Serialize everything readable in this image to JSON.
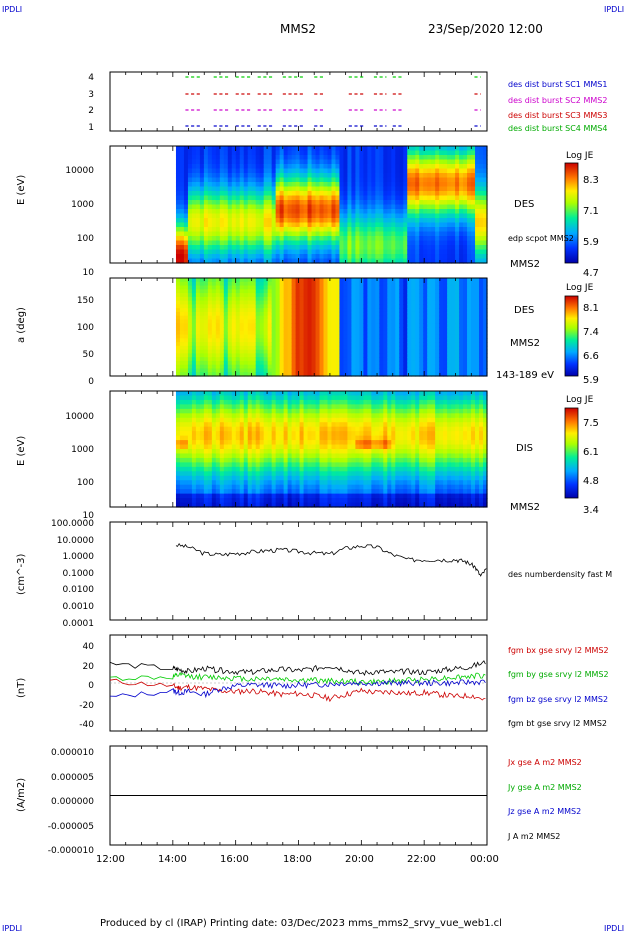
{
  "corner_label": "IPDLI",
  "header": {
    "spacecraft": "MMS2",
    "datetime": "23/Sep/2020 12:00"
  },
  "footer": "Produced by cl (IRAP)   Printing date: 03/Dec/2023   mms_mms2_srvy_vue_web1.cl",
  "colors": {
    "mms1": "#0000cc",
    "mms2": "#cc00cc",
    "mms3": "#cc0000",
    "mms4": "#00cc00",
    "black": "#000000"
  },
  "time_axis": {
    "ticks": [
      "12:00",
      "14:00",
      "16:00",
      "18:00",
      "20:00",
      "22:00",
      "00:00"
    ]
  },
  "panels": {
    "burst": {
      "yticks": [
        "4",
        "3",
        "2",
        "1"
      ],
      "legend": [
        "des dist burst SC1 MMS1",
        "des dist burst SC2 MMS2",
        "des dist burst SC3 MMS3",
        "des dist burst SC4 MMS4"
      ]
    },
    "des_energy": {
      "ylabel": "E (eV)",
      "yticks": [
        "10000",
        "1000",
        "100",
        "10"
      ],
      "label": "DES",
      "sublabel": "edp scpot MMS2",
      "spacecraft": "MMS2",
      "colorbar": {
        "title": "Log JE",
        "ticks": [
          "8.3",
          "7.1",
          "5.9",
          "4.7"
        ]
      }
    },
    "des_pitch": {
      "ylabel": "a (deg)",
      "yticks": [
        "150",
        "100",
        "50",
        "0"
      ],
      "label": "DES",
      "spacecraft": "MMS2",
      "energy_range": "143-189 eV",
      "colorbar": {
        "title": "Log JE",
        "ticks": [
          "8.1",
          "7.4",
          "6.6",
          "5.9"
        ]
      }
    },
    "dis_energy": {
      "ylabel": "E (eV)",
      "yticks": [
        "10000",
        "1000",
        "100",
        "10"
      ],
      "label": "DIS",
      "spacecraft": "MMS2",
      "colorbar": {
        "title": "Log JE",
        "ticks": [
          "7.5",
          "6.1",
          "4.8",
          "3.4"
        ]
      }
    },
    "density": {
      "ylabel": "(cm^-3)",
      "yticks": [
        "100.0000",
        "10.0000",
        "1.0000",
        "0.1000",
        "0.0100",
        "0.0010",
        "0.0001"
      ],
      "legend": "des numberdensity fast M"
    },
    "field": {
      "ylabel": "(nT)",
      "yticks": [
        "40",
        "20",
        "0",
        "-20",
        "-40"
      ],
      "legend": [
        "fgm bx gse srvy l2 MMS2",
        "fgm by gse srvy l2 MMS2",
        "fgm bz gse srvy l2 MMS2",
        "fgm bt gse srvy l2 MMS2"
      ]
    },
    "current": {
      "ylabel": "(A/m2)",
      "yticks": [
        "0.000010",
        "0.000005",
        "0.000000",
        "-0.000005",
        "-0.000010"
      ],
      "legend": [
        "Jx gse A m2 MMS2",
        "Jy gse A m2 MMS2",
        "Jz gse A m2 MMS2",
        "J A m2 MMS2"
      ]
    }
  },
  "chart_data": {
    "type": "line",
    "title": "MMS2",
    "x_range": [
      "23/Sep/2020 12:00",
      "24/Sep/2020 00:00"
    ],
    "data_start_hour": 14.1,
    "burst_intervals": {
      "note_units": "hours after 12:00",
      "intervals": [
        [
          14.4,
          14.9
        ],
        [
          15.3,
          15.8
        ],
        [
          16.0,
          16.5
        ],
        [
          16.7,
          17.2
        ],
        [
          17.5,
          18.2
        ],
        [
          18.5,
          18.8
        ],
        [
          19.6,
          20.1
        ],
        [
          20.4,
          20.8
        ],
        [
          21.0,
          21.3
        ],
        [
          23.6,
          23.8
        ]
      ]
    },
    "density_cm3": {
      "x_hours": [
        14.1,
        14.5,
        15.0,
        15.5,
        16.0,
        16.5,
        17.0,
        17.5,
        18.0,
        18.5,
        19.0,
        19.5,
        20.0,
        20.5,
        21.0,
        21.5,
        22.0,
        22.5,
        23.0,
        23.3,
        23.6,
        23.8,
        24.0
      ],
      "y": [
        4.0,
        3.0,
        1.2,
        1.0,
        1.2,
        1.5,
        1.8,
        2.0,
        1.6,
        1.3,
        1.1,
        2.5,
        3.5,
        3.0,
        1.0,
        0.5,
        0.5,
        0.5,
        0.5,
        0.4,
        0.2,
        0.05,
        0.15
      ]
    },
    "magnetic_field_nT": {
      "x_hours": [
        12.0,
        14.0,
        14.2,
        14.5,
        15.0,
        15.5,
        16.0,
        16.5,
        17.0,
        17.5,
        18.0,
        18.5,
        19.0,
        19.5,
        20.0,
        20.5,
        21.0,
        21.5,
        22.0,
        22.5,
        23.0,
        23.5,
        24.0
      ],
      "series": [
        {
          "name": "fgm bx gse srvy l2 MMS2",
          "color": "#cc0000",
          "values": [
            2,
            -3,
            -5,
            -4,
            -6,
            -8,
            -9,
            -8,
            -10,
            -12,
            -11,
            -13,
            -16,
            -12,
            -8,
            -10,
            -9,
            -11,
            -10,
            -12,
            -14,
            -13,
            -18
          ]
        },
        {
          "name": "fgm by gse srvy l2 MMS2",
          "color": "#00cc00",
          "values": [
            5,
            6,
            8,
            7,
            6,
            6,
            5,
            4,
            5,
            4,
            3,
            3,
            2,
            2,
            1,
            1,
            2,
            3,
            4,
            5,
            6,
            7,
            8
          ]
        },
        {
          "name": "fgm bz gse srvy l2 MMS2",
          "color": "#0000cc",
          "values": [
            -15,
            -8,
            -10,
            -9,
            -12,
            -6,
            -3,
            -2,
            -2,
            -3,
            -2,
            -2,
            -1,
            0,
            0,
            0,
            0,
            0,
            0,
            0,
            0,
            1,
            1
          ]
        },
        {
          "name": "fgm bt gse srvy l2 MMS2",
          "color": "#000000",
          "values": [
            20,
            15,
            14,
            12,
            15,
            13,
            12,
            11,
            13,
            14,
            13,
            15,
            18,
            14,
            10,
            12,
            11,
            12,
            11,
            13,
            15,
            17,
            22
          ]
        }
      ],
      "ylim": [
        -50,
        50
      ]
    },
    "current_A_m2": {
      "x_hours": [
        12.0,
        24.0
      ],
      "series": [
        {
          "name": "Jx gse A m2 MMS2",
          "values": [
            0,
            0
          ]
        },
        {
          "name": "Jy gse A m2 MMS2",
          "values": [
            0,
            0
          ]
        },
        {
          "name": "Jz gse A m2 MMS2",
          "values": [
            0,
            0
          ]
        },
        {
          "name": "J A m2 MMS2",
          "values": [
            0,
            0
          ]
        }
      ],
      "ylim": [
        -1e-05,
        1e-05
      ]
    }
  }
}
